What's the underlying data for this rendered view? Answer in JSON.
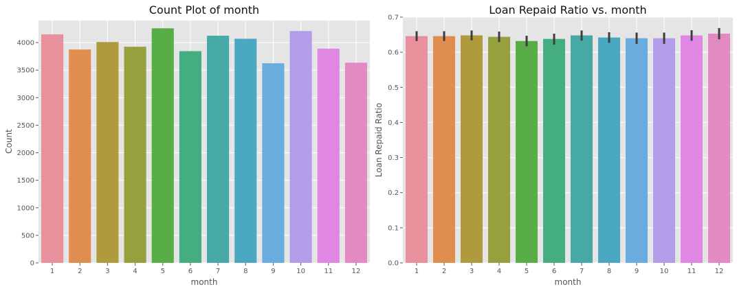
{
  "chart_data": [
    {
      "type": "bar",
      "title": "Count Plot of month",
      "xlabel": "month",
      "ylabel": "Count",
      "categories": [
        "1",
        "2",
        "3",
        "4",
        "5",
        "6",
        "7",
        "8",
        "9",
        "10",
        "11",
        "12"
      ],
      "values": [
        4150,
        3875,
        4010,
        3925,
        4260,
        3845,
        4125,
        4070,
        3625,
        4210,
        3890,
        3635
      ],
      "ylim": [
        0,
        4400
      ],
      "yticks": [
        0,
        500,
        1000,
        1500,
        2000,
        2500,
        3000,
        3500,
        4000
      ],
      "grid": true,
      "colors": [
        "#e8919d",
        "#e08e50",
        "#b09a3e",
        "#96a03f",
        "#58ad46",
        "#45ad82",
        "#47a9a5",
        "#4aa8c1",
        "#6aacde",
        "#b29ee8",
        "#e086e3",
        "#e38ac3"
      ]
    },
    {
      "type": "bar",
      "title": "Loan Repaid Ratio vs. month",
      "xlabel": "month",
      "ylabel": "Loan Repaid Ratio",
      "categories": [
        "1",
        "2",
        "3",
        "4",
        "5",
        "6",
        "7",
        "8",
        "9",
        "10",
        "11",
        "12"
      ],
      "values": [
        0.646,
        0.646,
        0.648,
        0.644,
        0.632,
        0.638,
        0.648,
        0.642,
        0.64,
        0.64,
        0.648,
        0.653
      ],
      "error_low": [
        0.632,
        0.632,
        0.634,
        0.629,
        0.617,
        0.622,
        0.633,
        0.627,
        0.624,
        0.624,
        0.633,
        0.637
      ],
      "error_high": [
        0.66,
        0.66,
        0.662,
        0.659,
        0.647,
        0.653,
        0.662,
        0.657,
        0.656,
        0.656,
        0.663,
        0.669
      ],
      "ylim": [
        0,
        0.7
      ],
      "yticks": [
        0.0,
        0.1,
        0.2,
        0.3,
        0.4,
        0.5,
        0.6,
        0.7
      ],
      "grid": true,
      "colors": [
        "#e8919d",
        "#e08e50",
        "#b09a3e",
        "#96a03f",
        "#58ad46",
        "#45ad82",
        "#47a9a5",
        "#4aa8c1",
        "#6aacde",
        "#b29ee8",
        "#e086e3",
        "#e38ac3"
      ]
    }
  ]
}
